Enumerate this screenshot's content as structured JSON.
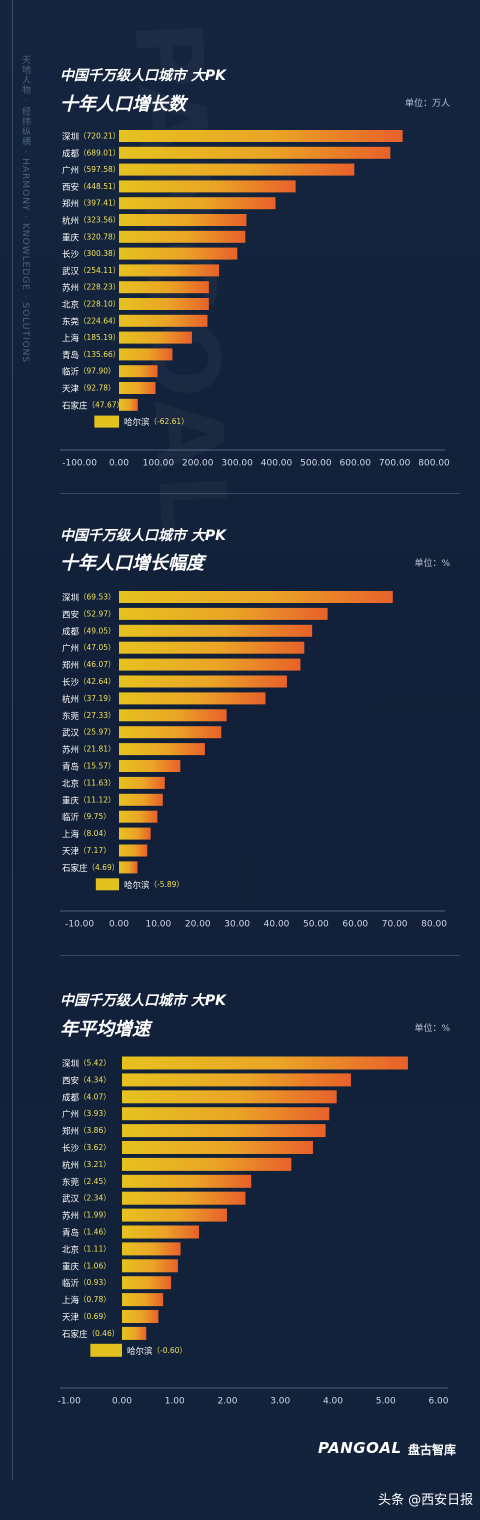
{
  "side_text": "天地人物 · 经纬纵横 · HARMONY · KNOWLEDGE · SOLUTIONS",
  "watermark_text": "PANGOAL",
  "brand": {
    "logo": "PANGOAL",
    "name": "盘古智库"
  },
  "footer": {
    "text": "头条 @西安日报"
  },
  "chart_data": [
    {
      "type": "bar",
      "pre_title": "中国千万级人口城市  大PK",
      "title": "十年人口增长数",
      "unit": "单位：万人",
      "categories": [
        "深圳",
        "成都",
        "广州",
        "西安",
        "郑州",
        "杭州",
        "重庆",
        "长沙",
        "武汉",
        "苏州",
        "北京",
        "东莞",
        "上海",
        "青岛",
        "临沂",
        "天津",
        "石家庄",
        "哈尔滨"
      ],
      "values": [
        720.21,
        689.01,
        597.58,
        448.51,
        397.41,
        323.56,
        320.78,
        300.38,
        254.11,
        228.23,
        228.1,
        224.64,
        185.19,
        135.66,
        97.9,
        92.78,
        47.67,
        -62.61
      ],
      "value_labels": [
        "720.21",
        "689.01",
        "597.58",
        "448.51",
        "397.41",
        "323.56",
        "320.78",
        "300.38",
        "254.11",
        "228.23",
        "228.10",
        "224.64",
        "185.19",
        "135.66",
        "97.90",
        "92.78",
        "47.67",
        "-62.61"
      ],
      "xlim": [
        -100,
        800
      ],
      "xticks": [
        "-100.00",
        "0.00",
        "100.00",
        "200.00",
        "300.00",
        "400.00",
        "500.00",
        "600.00",
        "700.00",
        "800.00"
      ],
      "tick_values": [
        -100,
        0,
        100,
        200,
        300,
        400,
        500,
        600,
        700,
        800
      ]
    },
    {
      "type": "bar",
      "pre_title": "中国千万级人口城市  大PK",
      "title": "十年人口增长幅度",
      "unit": "单位：%",
      "categories": [
        "深圳",
        "西安",
        "成都",
        "广州",
        "郑州",
        "长沙",
        "杭州",
        "东莞",
        "武汉",
        "苏州",
        "青岛",
        "北京",
        "重庆",
        "临沂",
        "上海",
        "天津",
        "石家庄",
        "哈尔滨"
      ],
      "values": [
        69.53,
        52.97,
        49.05,
        47.05,
        46.07,
        42.64,
        37.19,
        27.33,
        25.97,
        21.81,
        15.57,
        11.63,
        11.12,
        9.75,
        8.04,
        7.17,
        4.69,
        -5.89
      ],
      "value_labels": [
        "69.53",
        "52.97",
        "49.05",
        "47.05",
        "46.07",
        "42.64",
        "37.19",
        "27.33",
        "25.97",
        "21.81",
        "15.57",
        "11.63",
        "11.12",
        "9.75",
        "8.04",
        "7.17",
        "4.69",
        "-5.89"
      ],
      "xlim": [
        -10,
        80
      ],
      "xticks": [
        "-10.00",
        "0.00",
        "10.00",
        "20.00",
        "30.00",
        "40.00",
        "50.00",
        "60.00",
        "70.00",
        "80.00"
      ],
      "tick_values": [
        -10,
        0,
        10,
        20,
        30,
        40,
        50,
        60,
        70,
        80
      ]
    },
    {
      "type": "bar",
      "pre_title": "中国千万级人口城市  大PK",
      "title": "年平均增速",
      "unit": "单位：%",
      "categories": [
        "深圳",
        "西安",
        "成都",
        "广州",
        "郑州",
        "长沙",
        "杭州",
        "东莞",
        "武汉",
        "苏州",
        "青岛",
        "北京",
        "重庆",
        "临沂",
        "上海",
        "天津",
        "石家庄",
        "哈尔滨"
      ],
      "values": [
        5.42,
        4.34,
        4.07,
        3.93,
        3.86,
        3.62,
        3.21,
        2.45,
        2.34,
        1.99,
        1.46,
        1.11,
        1.06,
        0.93,
        0.78,
        0.69,
        0.46,
        -0.6
      ],
      "value_labels": [
        "5.42",
        "4.34",
        "4.07",
        "3.93",
        "3.86",
        "3.62",
        "3.21",
        "2.45",
        "2.34",
        "1.99",
        "1.46",
        "1.11",
        "1.06",
        "0.93",
        "0.78",
        "0.69",
        "0.46",
        "-0.60"
      ],
      "xlim": [
        -1,
        6
      ],
      "xticks": [
        "-1.00",
        "0.00",
        "1.00",
        "2.00",
        "3.00",
        "4.00",
        "5.00",
        "6.00"
      ],
      "tick_values": [
        -1,
        0,
        1,
        2,
        3,
        4,
        5,
        6
      ]
    }
  ]
}
